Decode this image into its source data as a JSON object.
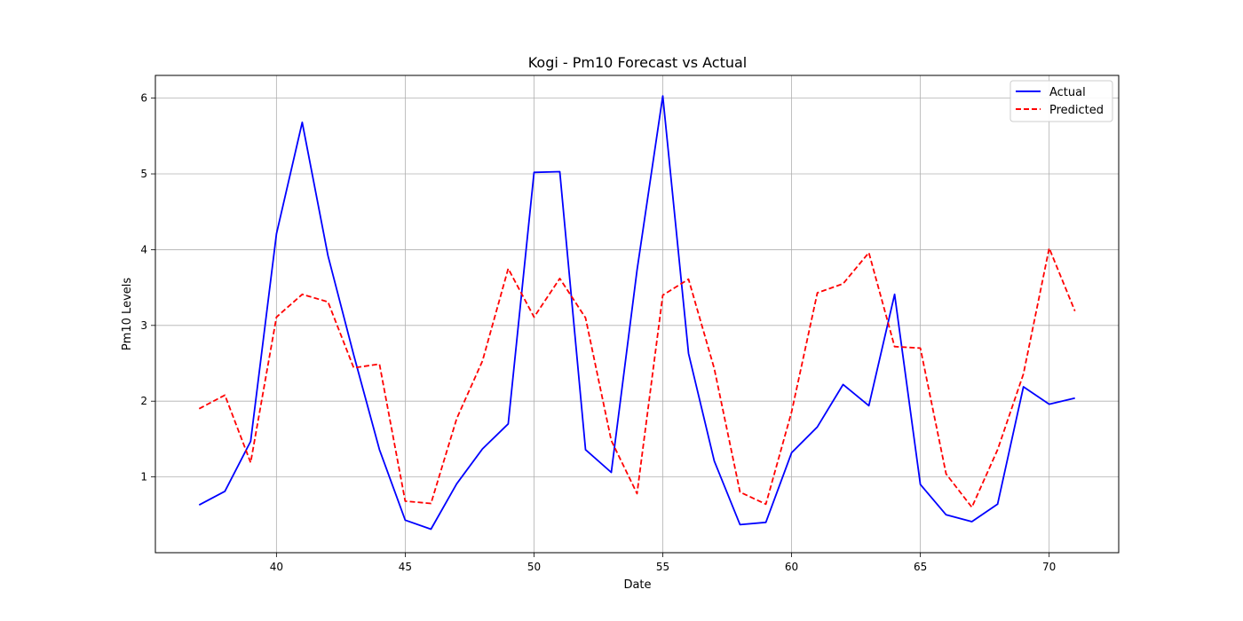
{
  "chart_data": {
    "type": "line",
    "title": "Kogi - Pm10 Forecast vs Actual",
    "xlabel": "Date",
    "ylabel": "Pm10 Levels",
    "x": [
      37,
      38,
      39,
      40,
      41,
      42,
      43,
      44,
      45,
      46,
      47,
      48,
      49,
      50,
      51,
      52,
      53,
      54,
      55,
      56,
      57,
      58,
      59,
      60,
      61,
      62,
      63,
      64,
      65,
      66,
      67,
      68,
      69,
      70,
      71
    ],
    "xlim": [
      35.3,
      72.7
    ],
    "ylim": [
      0.0,
      6.3
    ],
    "xticks": [
      40,
      45,
      50,
      55,
      60,
      65,
      70
    ],
    "yticks": [
      1,
      2,
      3,
      4,
      5,
      6
    ],
    "grid": true,
    "legend_position": "top-right",
    "series": [
      {
        "name": "Actual",
        "color": "#0000ff",
        "style": "solid",
        "values": [
          0.63,
          0.81,
          1.47,
          4.21,
          5.68,
          3.92,
          2.61,
          1.36,
          0.43,
          0.31,
          0.91,
          1.37,
          1.7,
          5.02,
          5.03,
          1.36,
          1.06,
          3.73,
          6.03,
          2.63,
          1.21,
          0.37,
          0.4,
          1.32,
          1.66,
          2.22,
          1.94,
          3.41,
          0.9,
          0.5,
          0.41,
          0.64,
          2.19,
          1.96,
          2.04
        ]
      },
      {
        "name": "Predicted",
        "color": "#ff0000",
        "style": "dashed",
        "values": [
          1.9,
          2.08,
          1.19,
          3.11,
          3.41,
          3.31,
          2.44,
          2.49,
          0.68,
          0.65,
          1.77,
          2.53,
          3.75,
          3.11,
          3.62,
          3.1,
          1.48,
          0.78,
          3.4,
          3.61,
          2.43,
          0.8,
          0.64,
          1.86,
          3.43,
          3.55,
          3.96,
          2.72,
          2.7,
          1.04,
          0.6,
          1.36,
          2.36,
          4.02,
          3.19
        ]
      }
    ]
  }
}
